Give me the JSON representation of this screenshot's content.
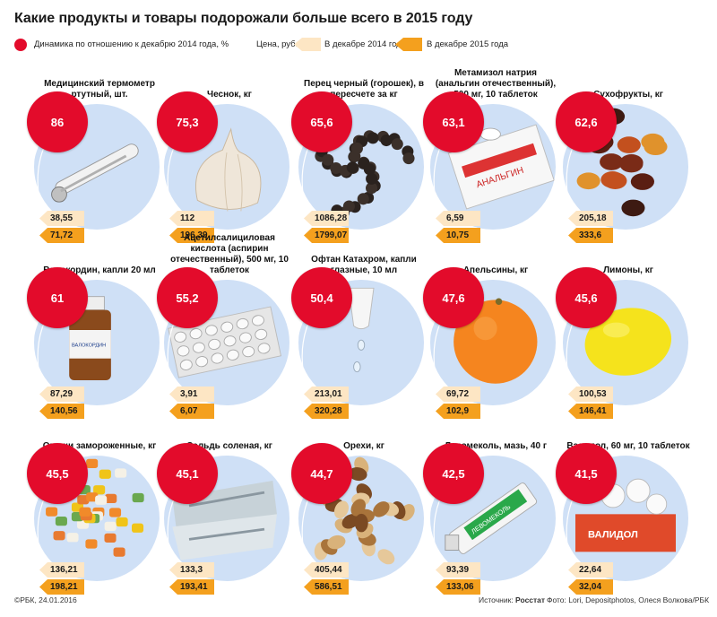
{
  "title": "Какие продукты и товары подорожали больше всего в 2015 году",
  "legend": {
    "dynamics": "Динамика по отношению к декабрю 2014 года, %",
    "price": "Цена, руб.",
    "dec2014": "В декабре 2014 года",
    "dec2015": "В декабре 2015 года"
  },
  "colors": {
    "dynamics": "#e30b2b",
    "price_2014": "#fde6c4",
    "price_2015": "#f4a01e",
    "circle_bg": "#cfe0f6"
  },
  "items": [
    {
      "name": "Медицинский термометр ртутный, шт.",
      "pct": "86",
      "p2014": "38,55",
      "p2015": "71,72",
      "icon": "thermometer-icon"
    },
    {
      "name": "Чеснок, кг",
      "pct": "75,3",
      "p2014": "112",
      "p2015": "196,39",
      "icon": "garlic-icon"
    },
    {
      "name": "Перец черный (горошек), в пересчете за кг",
      "pct": "65,6",
      "p2014": "1086,28",
      "p2015": "1799,07",
      "icon": "peppercorn-icon"
    },
    {
      "name": "Метамизол натрия (анальгин отечественный), 500 мг, 10 таблеток",
      "pct": "63,1",
      "p2014": "6,59",
      "p2015": "10,75",
      "icon": "pill-box-icon"
    },
    {
      "name": "Сухофрукты, кг",
      "pct": "62,6",
      "p2014": "205,18",
      "p2015": "333,6",
      "icon": "dried-fruit-icon"
    },
    {
      "name": "Валокордин, капли 20 мл",
      "pct": "61",
      "p2014": "87,29",
      "p2015": "140,56",
      "icon": "medicine-bottle-icon"
    },
    {
      "name": "Ацетилсалициловая кислота (аспирин отечественный), 500 мг, 10 таблеток",
      "pct": "55,2",
      "p2014": "3,91",
      "p2015": "6,07",
      "icon": "blister-pack-icon"
    },
    {
      "name": "Офтан Катахром, капли глазные, 10 мл",
      "pct": "50,4",
      "p2014": "213,01",
      "p2015": "320,28",
      "icon": "eye-drops-icon"
    },
    {
      "name": "Апельсины, кг",
      "pct": "47,6",
      "p2014": "69,72",
      "p2015": "102,9",
      "icon": "orange-icon"
    },
    {
      "name": "Лимоны, кг",
      "pct": "45,6",
      "p2014": "100,53",
      "p2015": "146,41",
      "icon": "lemon-icon"
    },
    {
      "name": "Овощи замороженные, кг",
      "pct": "45,5",
      "p2014": "136,21",
      "p2015": "198,21",
      "icon": "frozen-vegetables-icon"
    },
    {
      "name": "Сельдь соленая, кг",
      "pct": "45,1",
      "p2014": "133,3",
      "p2015": "193,41",
      "icon": "herring-icon"
    },
    {
      "name": "Орехи, кг",
      "pct": "44,7",
      "p2014": "405,44",
      "p2015": "586,51",
      "icon": "nuts-icon"
    },
    {
      "name": "Левомеколь, мазь, 40 г",
      "pct": "42,5",
      "p2014": "93,39",
      "p2015": "133,06",
      "icon": "ointment-tube-icon"
    },
    {
      "name": "Валидол, 60 мг, 10 таблеток",
      "pct": "41,5",
      "p2014": "22,64",
      "p2015": "32,04",
      "icon": "tablets-icon"
    }
  ],
  "photo_labels": {
    "pills_box": "АНАЛЬГИН",
    "bottle": "ВАЛОКОРДИН",
    "tube": "ЛЕВОМЕКОЛЬ",
    "validol": "ВАЛИДОЛ"
  },
  "footer": {
    "copyright": "©РБК, 24.01.2016",
    "source_label": "Источник:",
    "source": "Росстат",
    "photo": "Фото: Lori, Depositphotos, Олеся Волкова/РБК"
  }
}
